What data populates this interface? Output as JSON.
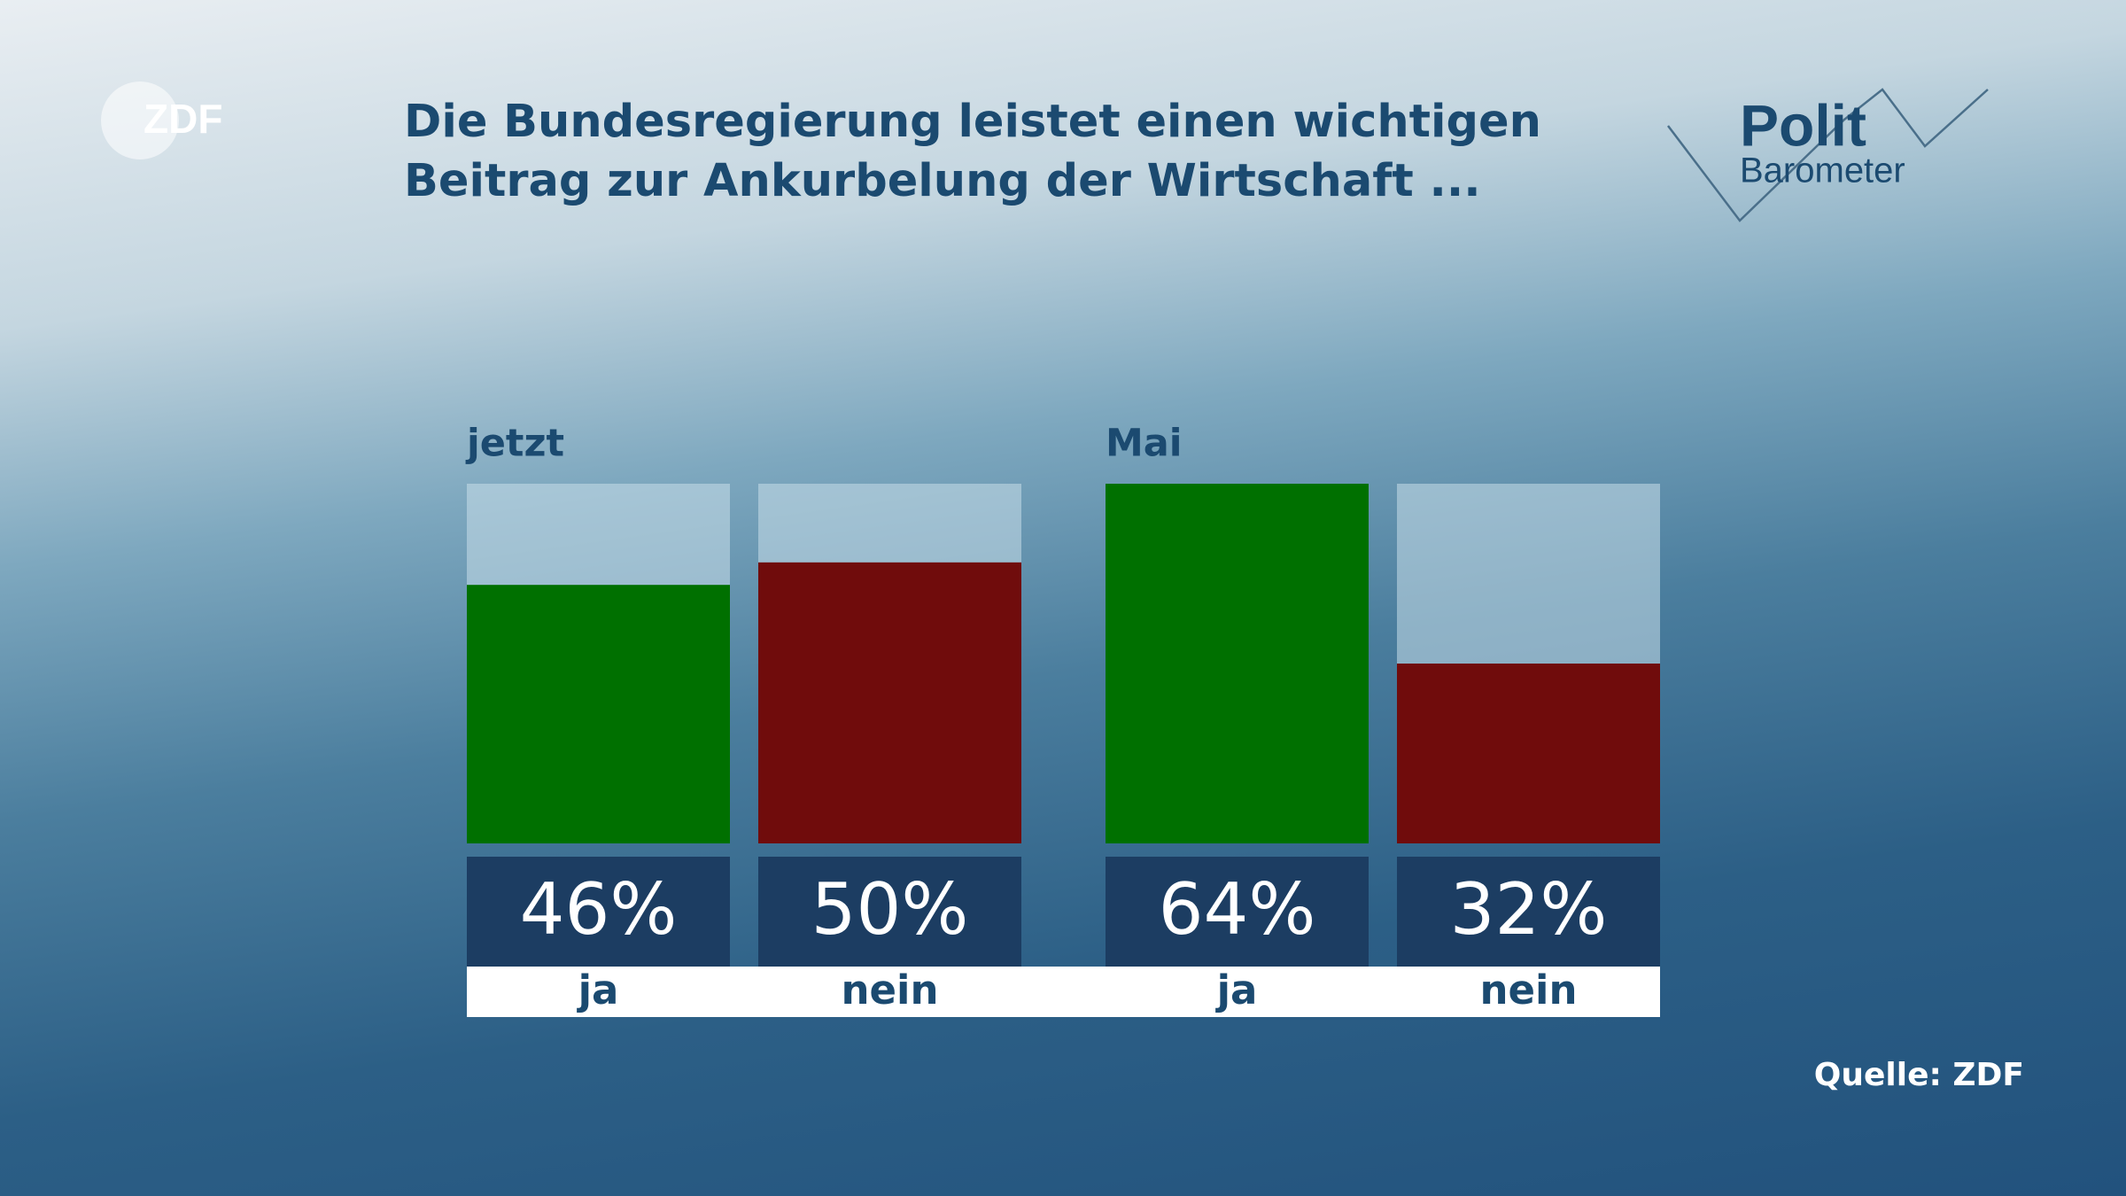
{
  "chart_data": {
    "type": "bar",
    "title": [
      "Die Bundesregierung leistet einen wichtigen",
      "Beitrag zur Ankurbelung der Wirtschaft ..."
    ],
    "categories": [
      "ja",
      "nein"
    ],
    "colors": [
      "#007000",
      "#700c0c"
    ],
    "groups": [
      {
        "name": "jetzt",
        "values": [
          46,
          50
        ],
        "value_labels": [
          "46%",
          "50%"
        ]
      },
      {
        "name": "Mai",
        "values": [
          64,
          32
        ],
        "value_labels": [
          "64%",
          "32%"
        ]
      }
    ],
    "ylim": [
      0,
      64
    ],
    "logo": "ZDF",
    "brand": [
      "Polit",
      "Barometer"
    ],
    "source": "Quelle: ZDF"
  }
}
